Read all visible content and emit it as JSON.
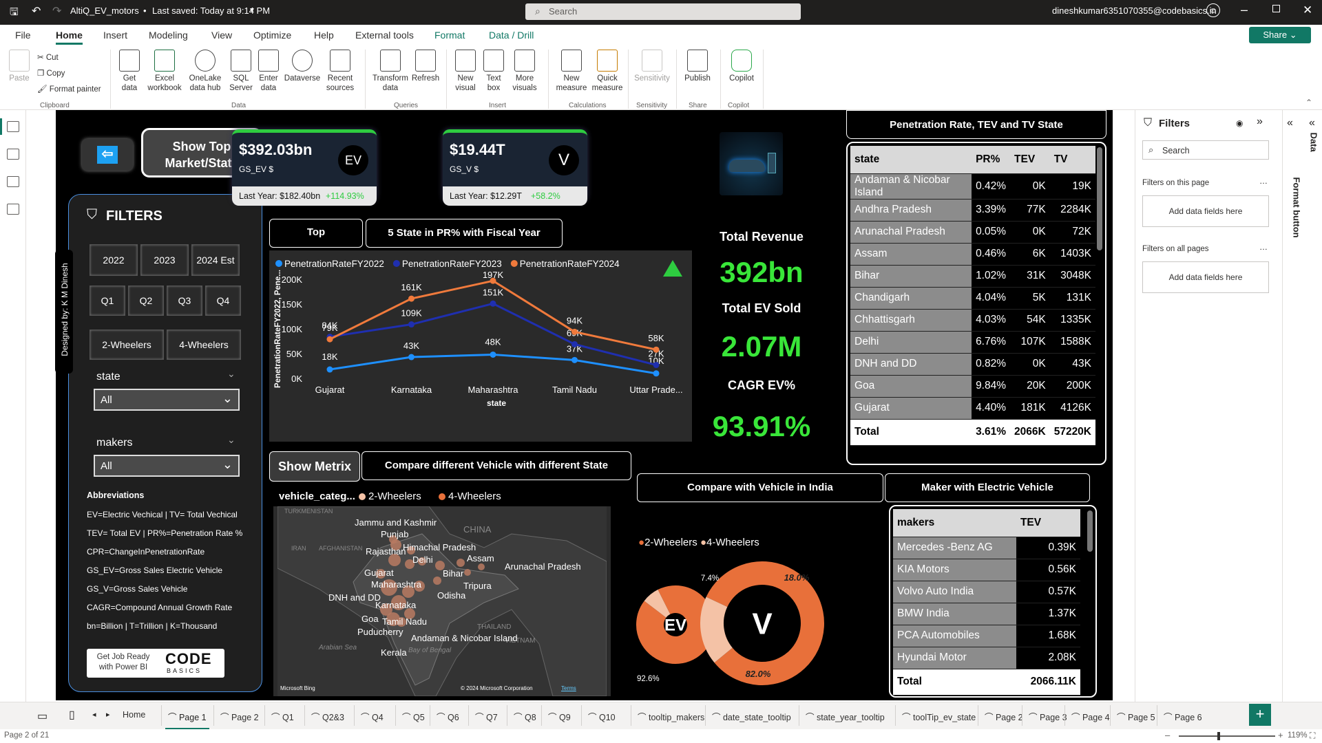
{
  "titlebar": {
    "file_name": "AltiQ_EV_motors",
    "saved": "Last saved: Today at 9:14 PM",
    "search_placeholder": "Search",
    "user_email": "dineshkumar6351070355@codebasics.in"
  },
  "menu": {
    "items": [
      "File",
      "Home",
      "Insert",
      "Modeling",
      "View",
      "Optimize",
      "Help",
      "External tools",
      "Format",
      "Data / Drill"
    ],
    "share": "Share"
  },
  "ribbon": {
    "clipboard": {
      "paste": "Paste",
      "cut": "Cut",
      "copy": "Copy",
      "format_painter": "Format painter",
      "group": "Clipboard"
    },
    "data": {
      "buttons": [
        "Get data",
        "Excel workbook",
        "OneLake data hub",
        "SQL Server",
        "Enter data",
        "Dataverse",
        "Recent sources"
      ],
      "group": "Data"
    },
    "queries": {
      "buttons": [
        "Transform data",
        "Refresh"
      ],
      "group": "Queries"
    },
    "insert": {
      "buttons": [
        "New visual",
        "Text box",
        "More visuals"
      ],
      "group": "Insert"
    },
    "calculations": {
      "buttons": [
        "New measure",
        "Quick measure"
      ],
      "group": "Calculations"
    },
    "sensitivity": {
      "buttons": [
        "Sensitivity"
      ],
      "group": "Sensitivity"
    },
    "share": {
      "buttons": [
        "Publish"
      ],
      "group": "Share"
    },
    "copilot": {
      "buttons": [
        "Copilot"
      ],
      "group": "Copilot"
    }
  },
  "report": {
    "show_top_button": "Show Top Market/State",
    "designed_by": "Designed by: K M Dinesh",
    "filters": {
      "title": "FILTERS",
      "years": [
        "2022",
        "2023",
        "2024 Est"
      ],
      "quarters": [
        "Q1",
        "Q2",
        "Q3",
        "Q4"
      ],
      "vehicles": [
        "2-Wheelers",
        "4-Wheelers"
      ],
      "state_label": "state",
      "state_value": "All",
      "makers_label": "makers",
      "makers_value": "All"
    },
    "abbreviations": {
      "title": "Abbreviations",
      "lines": [
        "EV=Electric Vechical | TV= Total Vechical",
        "TEV= Total EV | PR%=Penetration Rate %",
        "CPR=ChangeInPenetrationRate",
        "GS_EV=Gross Sales Electric Vehicle",
        "GS_V=Gross Sales Vehicle",
        "CAGR=Compound Annual Growth Rate",
        "bn=Billion | T=Trillion | K=Thousand"
      ]
    },
    "codebasics": {
      "left": "Get Job Ready with Power BI",
      "logo_top": "ODE",
      "logo_bottom": "BASICS"
    },
    "kpi_ev": {
      "value": "$392.03bn",
      "label": "GS_EV $",
      "icon": "EV",
      "last_year": "Last Year: $182.40bn",
      "change": "+114.93%"
    },
    "kpi_v": {
      "value": "$19.44T",
      "label": "GS_V $",
      "icon": "V",
      "last_year": "Last Year: $12.29T",
      "change": "+58.2%"
    },
    "headline": {
      "rev_label": "Total Revenue",
      "rev_value": "392bn",
      "ev_label": "Total EV Sold",
      "ev_value": "2.07M",
      "cagr_label": "CAGR EV%",
      "cagr_value": "93.91%"
    },
    "top_btn": "Top",
    "top_title": "5 State in PR% with Fiscal Year",
    "show_metrix": "Show Metrix",
    "compare_state_title": "Compare different Vehicle with different State",
    "compare_india_title": "Compare with Vehicle in India",
    "maker_title": "Maker with Electric Vehicle",
    "state_table_title": "Penetration Rate, TEV  and  TV State",
    "state_table": {
      "headers": [
        "state",
        "PR%",
        "TEV",
        "TV"
      ],
      "rows": [
        [
          "Andaman & Nicobar Island",
          "0.42%",
          "0K",
          "19K"
        ],
        [
          "Andhra Pradesh",
          "3.39%",
          "77K",
          "2284K"
        ],
        [
          "Arunachal Pradesh",
          "0.05%",
          "0K",
          "72K"
        ],
        [
          "Assam",
          "0.46%",
          "6K",
          "1403K"
        ],
        [
          "Bihar",
          "1.02%",
          "31K",
          "3048K"
        ],
        [
          "Chandigarh",
          "4.04%",
          "5K",
          "131K"
        ],
        [
          "Chhattisgarh",
          "4.03%",
          "54K",
          "1335K"
        ],
        [
          "Delhi",
          "6.76%",
          "107K",
          "1588K"
        ],
        [
          "DNH and DD",
          "0.82%",
          "0K",
          "43K"
        ],
        [
          "Goa",
          "9.84%",
          "20K",
          "200K"
        ],
        [
          "Gujarat",
          "4.40%",
          "181K",
          "4126K"
        ]
      ],
      "total": [
        "Total",
        "3.61%",
        "2066K",
        "57220K"
      ]
    },
    "maker_table": {
      "headers": [
        "makers",
        "TEV"
      ],
      "rows": [
        [
          "Mercedes -Benz AG",
          "0.39K"
        ],
        [
          "KIA Motors",
          "0.56K"
        ],
        [
          "Volvo Auto India",
          "0.57K"
        ],
        [
          "BMW India",
          "1.37K"
        ],
        [
          "PCA Automobiles",
          "1.68K"
        ],
        [
          "Hyundai Motor",
          "2.08K"
        ]
      ],
      "total": [
        "Total",
        "2066.11K"
      ]
    },
    "map": {
      "legend_title": "vehicle_categ...",
      "legend": [
        "2-Wheelers",
        "4-Wheelers"
      ],
      "labels": [
        "Jammu and Kashmir",
        "Punjab",
        "Himachal Pradesh",
        "Rajasthan",
        "Delhi",
        "Assam",
        "Arunachal Pradesh",
        "Gujarat",
        "Bihar",
        "Maharashtra",
        "Tripura",
        "DNH and DD",
        "Odisha",
        "Karnataka",
        "Goa",
        "Tamil Nadu",
        "Puducherry",
        "Andaman & Nicobar Island",
        "Kerala"
      ],
      "bg_labels": [
        "TURKMENISTAN",
        "CHINA",
        "IRAN",
        "AFGHANISTAN",
        "THAILAND",
        "VIETNAM",
        "Arabian Sea",
        "Bay of Bengal"
      ],
      "bing": "Microsoft Bing",
      "copyright": "© 2024 Microsoft Corporation",
      "terms": "Terms"
    },
    "donut_legend": [
      "2-Wheelers",
      "4-Wheelers"
    ],
    "donut_ev": {
      "center": "EV",
      "label_small": "7.4%",
      "label_big": "92.6%"
    },
    "donut_v": {
      "center": "V",
      "label_small": "18.0%",
      "label_big": "82.0%"
    }
  },
  "chart_data": {
    "type": "line",
    "categories": [
      "Gujarat",
      "Karnataka",
      "Maharashtra",
      "Tamil Nadu",
      "Uttar Prade..."
    ],
    "series": [
      {
        "name": "PenetrationRateFY2022",
        "values": [
          18000,
          43000,
          48000,
          37000,
          10000
        ],
        "labels": [
          "18K",
          "43K",
          "48K",
          "37K",
          "10K"
        ],
        "color": "#1e90ff"
      },
      {
        "name": "PenetrationRateFY2023",
        "values": [
          84000,
          109000,
          151000,
          69000,
          27000
        ],
        "labels": [
          "84K",
          "109K",
          "151K",
          "69K",
          "27K"
        ],
        "color": "#1f2fb0"
      },
      {
        "name": "PenetrationRateFY2024",
        "values": [
          79000,
          161000,
          197000,
          94000,
          58000
        ],
        "labels": [
          "79K",
          "161K",
          "197K",
          "94K",
          "58K"
        ],
        "color": "#f07a3c"
      }
    ],
    "xlabel": "state",
    "ylabel": "PenetrationRateFY2022, Pene...",
    "yticks": [
      "0K",
      "50K",
      "100K",
      "150K",
      "200K"
    ],
    "ylim": [
      0,
      200000
    ]
  },
  "donut_data": [
    {
      "type": "pie",
      "name": "EV",
      "categories": [
        "2-Wheelers",
        "4-Wheelers"
      ],
      "values": [
        92.6,
        7.4
      ]
    },
    {
      "type": "pie",
      "name": "V",
      "categories": [
        "2-Wheelers",
        "4-Wheelers"
      ],
      "values": [
        82.0,
        18.0
      ]
    }
  ],
  "filters_pane": {
    "title": "Filters",
    "search": "Search",
    "on_page": "Filters on this page",
    "all_pages": "Filters on all pages",
    "add_fields": "Add data fields here"
  },
  "right_rail": {
    "format": "Format button",
    "data": "Data"
  },
  "page_tabs": [
    "Home",
    "Page 1",
    "Page 2",
    "Q1",
    "Q2&3",
    "Q4",
    "Q5",
    "Q6",
    "Q7",
    "Q8",
    "Q9",
    "Q10",
    "tooltip_makers",
    "date_state_tooltip",
    "state_year_tooltip",
    "toolTip_ev_state",
    "Page 2",
    "Page 3",
    "Page 4",
    "Page 5",
    "Page 6"
  ],
  "status": {
    "page": "Page 2 of 21",
    "zoom": "119%"
  },
  "colors": {
    "accent": "#117865",
    "orange": "#e8703a",
    "light_orange": "#f4c2a6",
    "green": "#39e639"
  }
}
